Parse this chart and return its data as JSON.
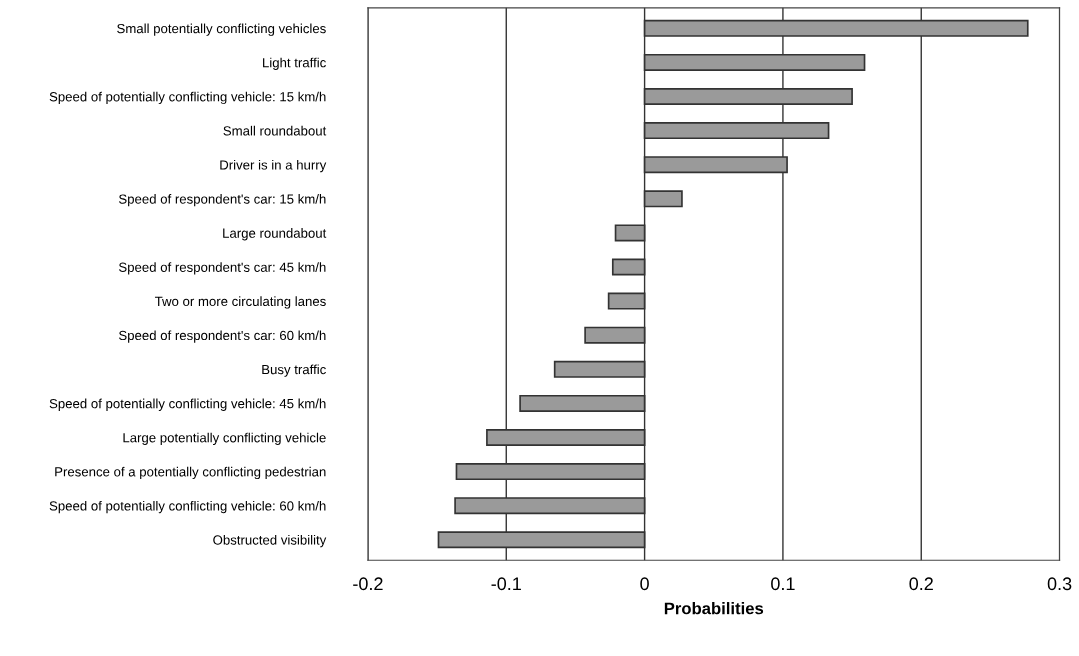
{
  "chart_data": {
    "type": "bar",
    "orientation": "horizontal",
    "xlabel": "Probabilities",
    "categories": [
      "Small potentially conflicting vehicles",
      "Light traffic",
      "Speed of potentially conflicting vehicle: 15 km/h",
      "Small roundabout",
      "Driver is in a hurry",
      "Speed of respondent's car: 15 km/h",
      "Large roundabout",
      "Speed of respondent's car: 45 km/h",
      "Two or more circulating lanes",
      "Speed of respondent's car: 60 km/h",
      "Busy traffic",
      "Speed of potentially conflicting vehicle: 45 km/h",
      "Large potentially conflicting vehicle",
      "Presence of a potentially conflicting pedestrian",
      "Speed of potentially conflicting vehicle: 60 km/h",
      "Obstructed visibility"
    ],
    "values": [
      0.277,
      0.159,
      0.15,
      0.133,
      0.103,
      0.027,
      -0.021,
      -0.023,
      -0.026,
      -0.043,
      -0.065,
      -0.09,
      -0.114,
      -0.136,
      -0.137,
      -0.149
    ],
    "color": "#9a9a9a",
    "xlim": [
      -0.2,
      0.3
    ],
    "xticks": [
      -0.2,
      -0.1,
      0,
      0.1,
      0.2,
      0.3
    ],
    "grid": "x"
  }
}
